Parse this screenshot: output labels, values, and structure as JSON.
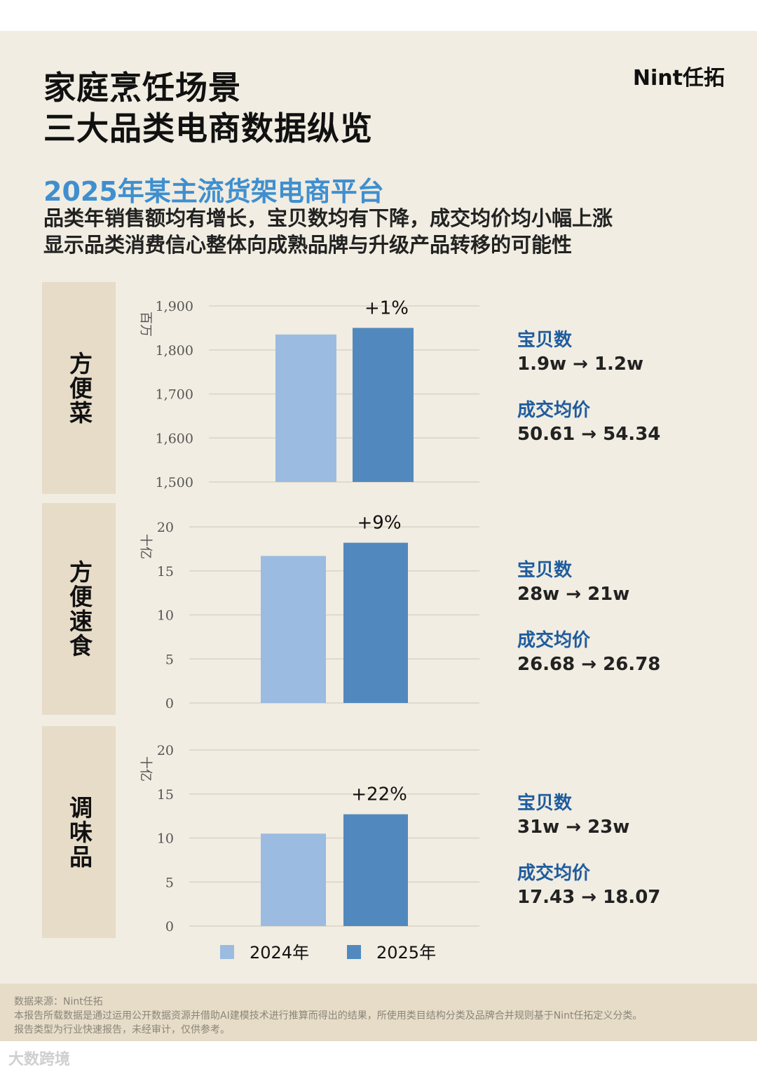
{
  "header": {
    "title_line1": "家庭烹饪场景",
    "title_line2": "三大品类电商数据纵览",
    "logo": "Nint任拓"
  },
  "subtitle": "2025年某主流货架电商平台",
  "description": [
    "品类年销售额均有增长，宝贝数均有下降，成交均价均小幅上涨",
    "显示品类消费信心整体向成熟品牌与升级产品转移的可能性"
  ],
  "colors": {
    "bar_2024": "#9bbbe0",
    "bar_2025": "#5189bf",
    "accent": "#3f8fcf"
  },
  "legend": [
    "2024年",
    "2025年"
  ],
  "chart_data": [
    {
      "type": "bar",
      "category": "方便菜",
      "unit": "百万",
      "categories": [
        "2024年",
        "2025年"
      ],
      "values": [
        1835,
        1850
      ],
      "ylim": [
        1500,
        1900
      ],
      "yticks": [
        "1,500",
        "1,600",
        "1,700",
        "1,800",
        "1,900"
      ],
      "change": "+1%",
      "stats": [
        {
          "label": "宝贝数",
          "value": "1.9w → 1.2w"
        },
        {
          "label": "成交均价",
          "value": "50.61 → 54.34"
        }
      ]
    },
    {
      "type": "bar",
      "category": "方便速食",
      "unit": "十亿",
      "categories": [
        "2024年",
        "2025年"
      ],
      "values": [
        16.7,
        18.2
      ],
      "ylim": [
        0,
        20
      ],
      "yticks": [
        "0",
        "5",
        "10",
        "15",
        "20"
      ],
      "change": "+9%",
      "stats": [
        {
          "label": "宝贝数",
          "value": "28w → 21w"
        },
        {
          "label": "成交均价",
          "value": "26.68 → 26.78"
        }
      ]
    },
    {
      "type": "bar",
      "category": "调味品",
      "unit": "十亿",
      "categories": [
        "2024年",
        "2025年"
      ],
      "values": [
        10.5,
        12.7
      ],
      "ylim": [
        0,
        20
      ],
      "yticks": [
        "0",
        "5",
        "10",
        "15",
        "20"
      ],
      "change": "+22%",
      "stats": [
        {
          "label": "宝贝数",
          "value": "31w → 23w"
        },
        {
          "label": "成交均价",
          "value": "17.43 → 18.07"
        }
      ]
    }
  ],
  "footer": {
    "source": "数据来源：Nint任拓",
    "note1": "本报告所载数据是通过运用公开数据资源并借助AI建模技术进行推算而得出的结果，所使用类目结构分类及品牌合并规则基于Nint任拓定义分类。",
    "note2": "报告类型为行业快速报告，未经审计，仅供参考。"
  },
  "watermark": "大数跨境"
}
